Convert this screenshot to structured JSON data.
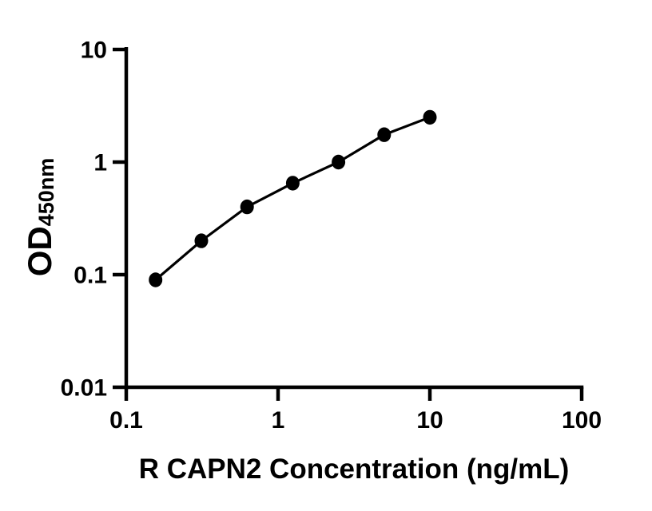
{
  "figure": {
    "description": "ELISA standard curve figure",
    "colors": {
      "background": "#ffffff",
      "axis": "#000000",
      "text": "#000000",
      "marker": "#000000",
      "line": "#000000"
    }
  },
  "chart_data": {
    "type": "scatter",
    "title": "",
    "xlabel": "R CAPN2 Concentration (ng/mL)",
    "ylabel_main": "OD",
    "ylabel_subscript": "450nm",
    "x_scale": "log10",
    "y_scale": "log10",
    "xlim": [
      0.1,
      100
    ],
    "ylim": [
      0.01,
      10
    ],
    "x_ticks": [
      0.1,
      1,
      10,
      100
    ],
    "x_tick_labels": [
      "0.1",
      "1",
      "10",
      "100"
    ],
    "y_ticks": [
      10,
      1,
      0.1,
      0.01
    ],
    "y_tick_labels": [
      "10",
      "1",
      "0.1",
      "0.01"
    ],
    "grid": false,
    "legend": "none",
    "series": [
      {
        "name": "R CAPN2 standard curve",
        "marker": "filled-circle",
        "color": "#000000",
        "points": [
          [
            0.156,
            0.09
          ],
          [
            0.3125,
            0.2
          ],
          [
            0.625,
            0.4
          ],
          [
            1.25,
            0.65
          ],
          [
            2.5,
            1.0
          ],
          [
            5,
            1.75
          ],
          [
            10,
            2.5
          ]
        ]
      }
    ]
  }
}
